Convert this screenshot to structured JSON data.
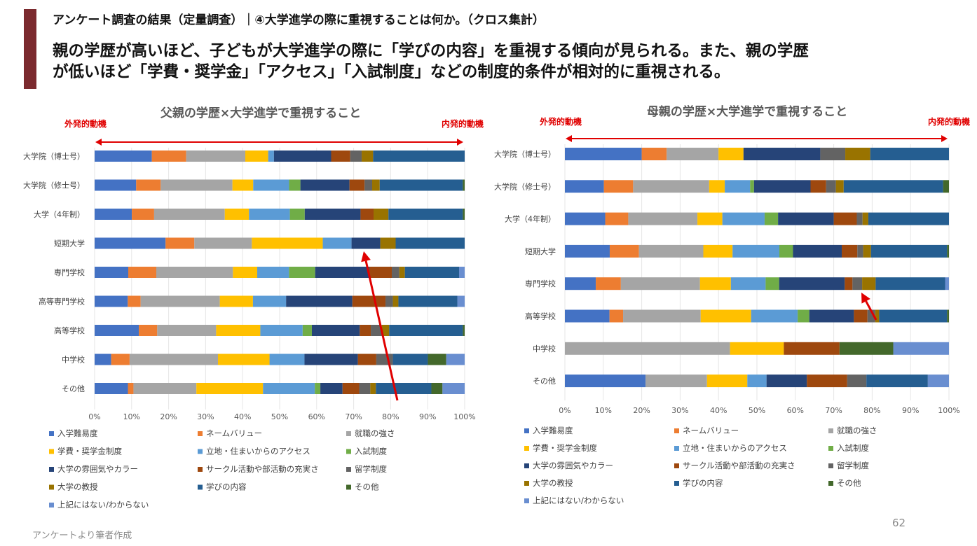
{
  "header": {
    "subtitle": "アンケート調査の結果（定量調査）｜④大学進学の際に重視することは何か。（クロス集計）",
    "headline_line1": "親の学歴が高いほど、子どもが大学進学の際に「学びの内容」を重視する傾向が見られる。また、親の学歴",
    "headline_line2": "が低いほど「学費・奨学金」「アクセス」「入試制度」などの制度的条件が相対的に重視される。"
  },
  "footer": {
    "source": "アンケートより筆者作成",
    "page_number": "62"
  },
  "legend": [
    {
      "name": "入学難易度",
      "color": "#4472c4"
    },
    {
      "name": "ネームバリュー",
      "color": "#ed7d31"
    },
    {
      "name": "就職の強さ",
      "color": "#a5a5a5"
    },
    {
      "name": "学費・奨学金制度",
      "color": "#ffc000"
    },
    {
      "name": "立地・住まいからのアクセス",
      "color": "#5b9bd5"
    },
    {
      "name": "入試制度",
      "color": "#70ad47"
    },
    {
      "name": "大学の雰囲気やカラー",
      "color": "#264478"
    },
    {
      "name": "サークル活動や部活動の充実さ",
      "color": "#9e480e"
    },
    {
      "name": "留学制度",
      "color": "#636363"
    },
    {
      "name": "大学の教授",
      "color": "#997300"
    },
    {
      "name": "学びの内容",
      "color": "#255e91"
    },
    {
      "name": "その他",
      "color": "#43682b"
    },
    {
      "name": "上記にはない/わからない",
      "color": "#698ed0"
    }
  ],
  "chart_data": [
    {
      "type": "bar",
      "orientation": "horizontal-stacked-100",
      "title": "父親の学歴×大学進学で重視すること",
      "left_annotation": "外発的動機",
      "right_annotation": "内発的動機",
      "xlim": [
        0,
        100
      ],
      "x_ticks": [
        "0%",
        "10%",
        "20%",
        "30%",
        "40%",
        "50%",
        "60%",
        "70%",
        "80%",
        "90%",
        "100%"
      ],
      "categories": [
        "大学院（博士号）",
        "大学院（修士号）",
        "大学（4年制）",
        "短期大学",
        "専門学校",
        "高等専門学校",
        "高等学校",
        "中学校",
        "その他"
      ],
      "series": [
        {
          "name": "入学難易度",
          "values": [
            15,
            11,
            10,
            18.5,
            9,
            9,
            12,
            4.5,
            9
          ]
        },
        {
          "name": "ネームバリュー",
          "values": [
            9,
            6.5,
            6,
            7.5,
            7.5,
            3.5,
            5,
            5,
            1.5
          ]
        },
        {
          "name": "就職の強さ",
          "values": [
            15.5,
            19,
            19,
            15,
            20.5,
            21.5,
            16,
            24,
            17
          ]
        },
        {
          "name": "学費・奨学金制度",
          "values": [
            6,
            5.5,
            6.5,
            18.5,
            6.5,
            9,
            12,
            14,
            18
          ]
        },
        {
          "name": "立地・住まいからのアクセス",
          "values": [
            1.5,
            9.5,
            11,
            7.5,
            8.5,
            9,
            11.5,
            9.5,
            14
          ]
        },
        {
          "name": "入試制度",
          "values": [
            0,
            3,
            4,
            0,
            7,
            0,
            2.5,
            0,
            1.5
          ]
        },
        {
          "name": "大学の雰囲気やカラー",
          "values": [
            15,
            13,
            15,
            7.5,
            14.5,
            18,
            13,
            14.5,
            6
          ]
        },
        {
          "name": "サークル活動や部活動の充実さ",
          "values": [
            5,
            4,
            3.5,
            0,
            6,
            9,
            3,
            5,
            4.5
          ]
        },
        {
          "name": "留学制度",
          "values": [
            3,
            2,
            0,
            0,
            2,
            2,
            3,
            4.5,
            3
          ]
        },
        {
          "name": "大学の教授",
          "values": [
            3,
            2,
            4,
            4,
            1.5,
            1.5,
            2,
            0,
            1.5
          ]
        },
        {
          "name": "学びの内容",
          "values": [
            24,
            22,
            20,
            18,
            14.5,
            16,
            20,
            9.5,
            15
          ]
        },
        {
          "name": "その他",
          "values": [
            0,
            0.5,
            0.5,
            0,
            0,
            0,
            0.5,
            5,
            3
          ]
        },
        {
          "name": "上記にはない/わからない",
          "values": [
            0,
            0,
            0,
            0,
            1.5,
            2,
            0,
            5,
            6
          ]
        }
      ]
    },
    {
      "type": "bar",
      "orientation": "horizontal-stacked-100",
      "title": "母親の学歴×大学進学で重視すること",
      "left_annotation": "外発的動機",
      "right_annotation": "内発的動機",
      "xlim": [
        0,
        100
      ],
      "x_ticks": [
        "0%",
        "10%",
        "20%",
        "30%",
        "40%",
        "50%",
        "60%",
        "70%",
        "80%",
        "90%",
        "100%"
      ],
      "categories": [
        "大学院（博士号）",
        "大学院（修士号）",
        "大学（4年制）",
        "短期大学",
        "専門学校",
        "高等学校",
        "中学校",
        "その他"
      ],
      "series": [
        {
          "name": "入学難易度",
          "values": [
            20,
            10,
            10.5,
            11.5,
            8,
            11.5,
            0,
            21
          ]
        },
        {
          "name": "ネームバリュー",
          "values": [
            6.5,
            7.5,
            6,
            7.5,
            6.5,
            3.5,
            0,
            0
          ]
        },
        {
          "name": "就職の強さ",
          "values": [
            13.5,
            19.5,
            18,
            16.5,
            20.5,
            20,
            43,
            16
          ]
        },
        {
          "name": "学費・奨学金制度",
          "values": [
            6.5,
            4,
            6.5,
            7.5,
            8,
            13,
            14,
            10.5
          ]
        },
        {
          "name": "立地・住まいからのアクセス",
          "values": [
            0,
            6.5,
            11,
            12,
            9,
            12,
            0,
            5
          ]
        },
        {
          "name": "入試制度",
          "values": [
            0,
            1,
            3.5,
            3.5,
            3.5,
            3,
            0,
            0
          ]
        },
        {
          "name": "大学の雰囲気やカラー",
          "values": [
            20,
            14.5,
            14.5,
            12.5,
            17,
            11.5,
            0,
            10.5
          ]
        },
        {
          "name": "サークル活動や部活動の充実さ",
          "values": [
            0,
            4,
            6,
            4,
            2,
            3.5,
            14.5,
            10.5
          ]
        },
        {
          "name": "留学制度",
          "values": [
            6.5,
            2.5,
            1.5,
            1.5,
            2.5,
            2,
            0,
            5
          ]
        },
        {
          "name": "大学の教授",
          "values": [
            6.5,
            2,
            1.5,
            2,
            3.5,
            1,
            0,
            0
          ]
        },
        {
          "name": "学びの内容",
          "values": [
            20.5,
            25.5,
            21,
            19.5,
            18,
            17.5,
            0,
            16
          ]
        },
        {
          "name": "その他",
          "values": [
            0,
            1.5,
            0,
            0.5,
            0,
            0.5,
            14,
            0
          ]
        },
        {
          "name": "上記にはない/わからない",
          "values": [
            0,
            0,
            0,
            0,
            1,
            0,
            14.5,
            5.5
          ]
        }
      ]
    }
  ]
}
